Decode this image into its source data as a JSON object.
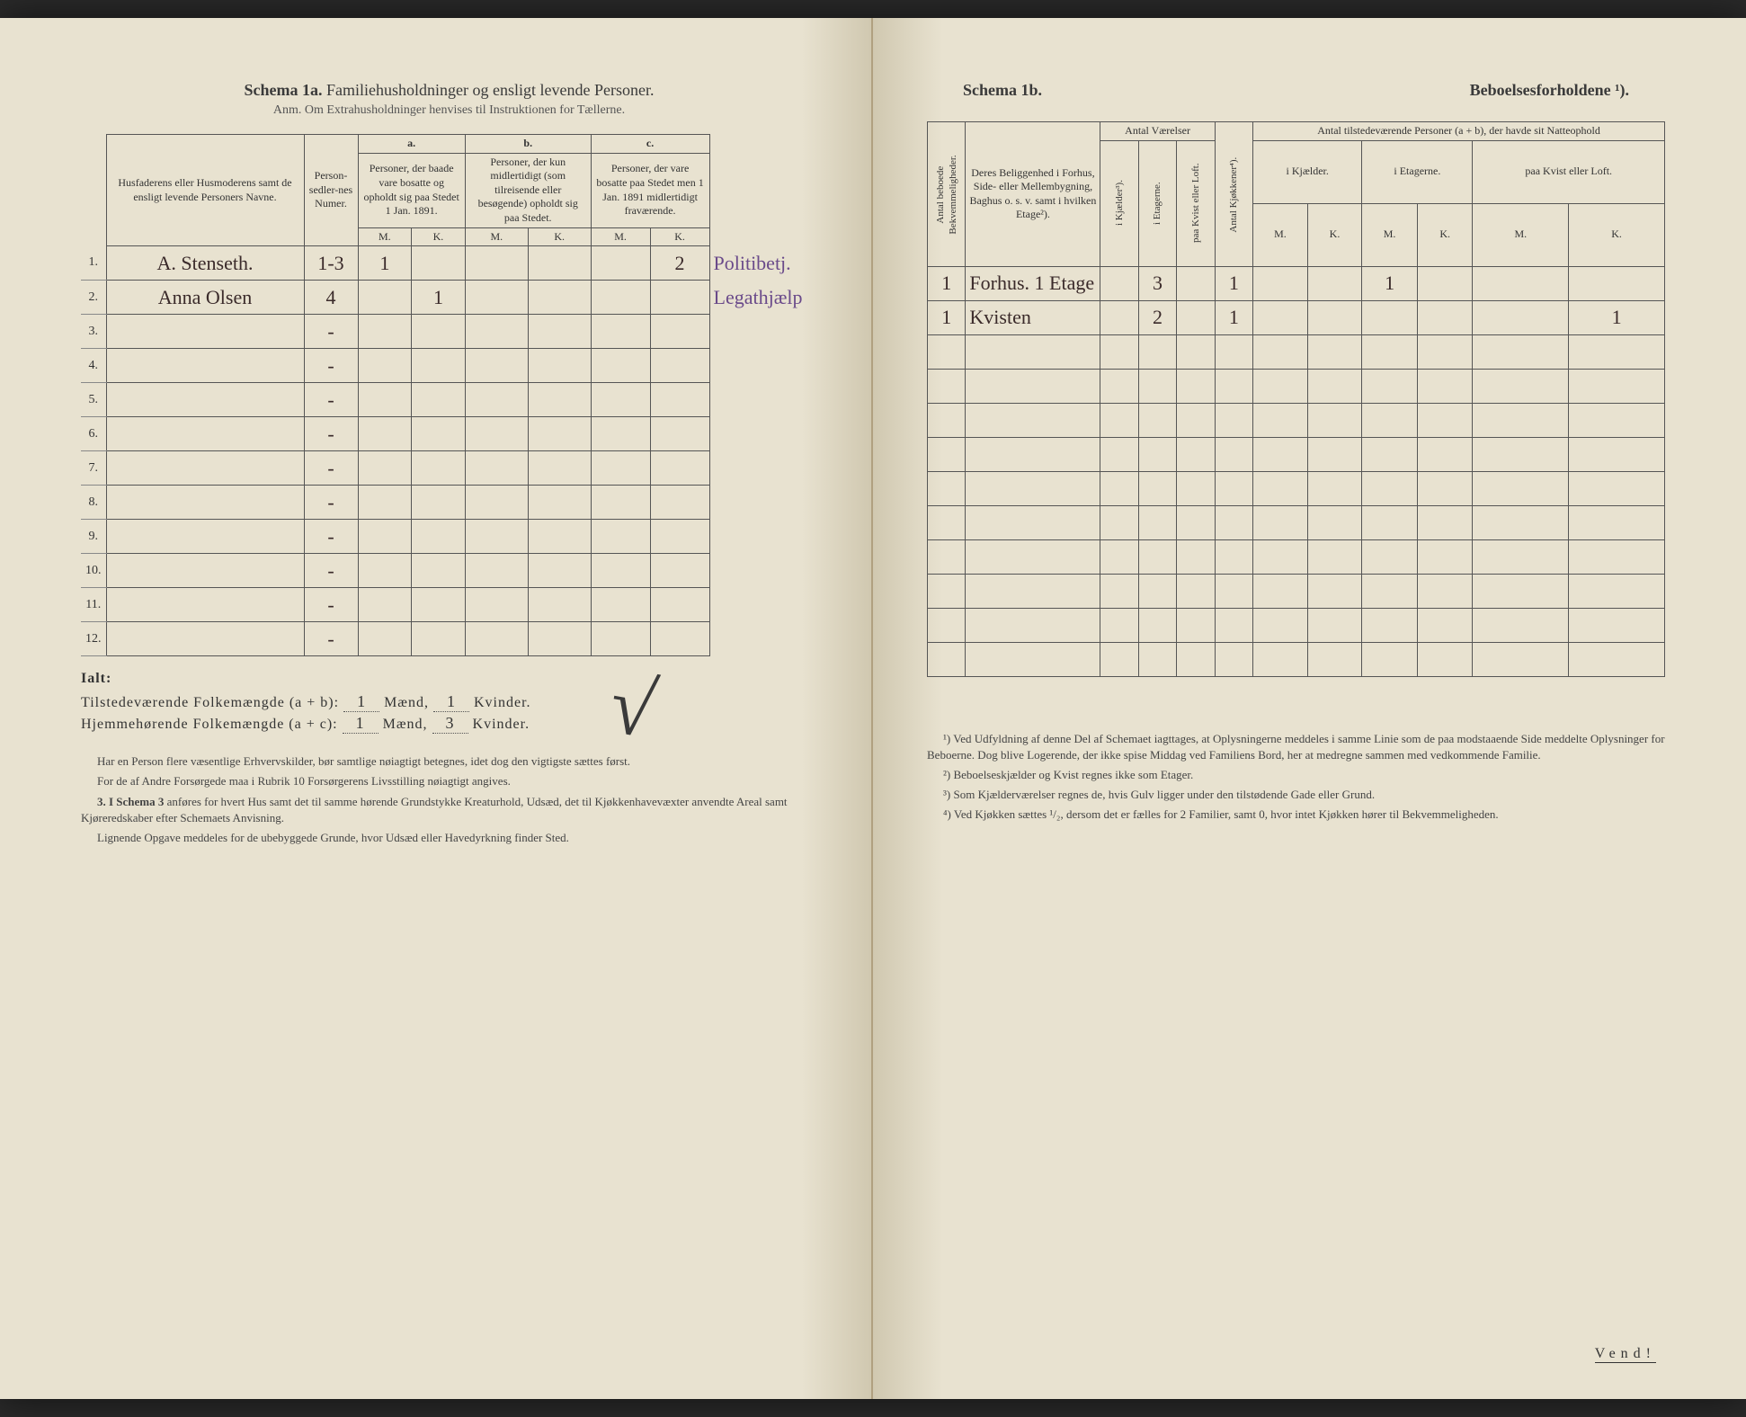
{
  "left": {
    "title_bold": "Schema 1a.",
    "title_rest": "Familiehusholdninger og ensligt levende Personer.",
    "subtitle": "Anm. Om Extrahusholdninger henvises til Instruktionen for Tællerne.",
    "col_name_header": "Husfaderens eller Husmoderens samt de ensligt levende Personers Navne.",
    "col_sedler": "Person-sedler-nes Numer.",
    "group_a": "a.",
    "group_b": "b.",
    "group_c": "c.",
    "col_a": "Personer, der baade vare bosatte og opholdt sig paa Stedet 1 Jan. 1891.",
    "col_b": "Personer, der kun midlertidigt (som tilreisende eller besøgende) opholdt sig paa Stedet.",
    "col_c": "Personer, der vare bosatte paa Stedet men 1 Jan. 1891 midlertidigt fraværende.",
    "mk_m": "M.",
    "mk_k": "K.",
    "rows": [
      {
        "n": "1.",
        "name": "A. Stenseth.",
        "sedler": "1-3",
        "a_m": "1",
        "a_k": "",
        "b_m": "",
        "b_k": "",
        "c_m": "",
        "c_k": "2",
        "occ": "Politibetj."
      },
      {
        "n": "2.",
        "name": "Anna Olsen",
        "sedler": "4",
        "a_m": "",
        "a_k": "1",
        "b_m": "",
        "b_k": "",
        "c_m": "",
        "c_k": "",
        "occ": "Legathjælp"
      },
      {
        "n": "3."
      },
      {
        "n": "4."
      },
      {
        "n": "5."
      },
      {
        "n": "6."
      },
      {
        "n": "7."
      },
      {
        "n": "8."
      },
      {
        "n": "9."
      },
      {
        "n": "10."
      },
      {
        "n": "11."
      },
      {
        "n": "12."
      }
    ],
    "ialt_label": "Ialt:",
    "tilstede_line_pre": "Tilstedeværende Folkemængde (a + b): ",
    "tilstede_m": "1",
    "tilstede_mid": " Mænd, ",
    "tilstede_k": "1",
    "tilstede_post": " Kvinder.",
    "hjemme_line_pre": "Hjemmehørende Folkemængde (a + c): ",
    "hjemme_m": "1",
    "hjemme_mid": " Mænd, ",
    "hjemme_k": "3",
    "hjemme_post": " Kvinder.",
    "foot1": "Har en Person flere væsentlige Erhvervskilder, bør samtlige nøiagtigt betegnes, idet dog den vigtigste sættes først.",
    "foot2": "For de af Andre Forsørgede maa i Rubrik 10 Forsørgerens Livsstilling nøiagtigt angives.",
    "foot3_lead": "3. I Schema 3",
    "foot3": " anføres for hvert Hus samt det til samme hørende Grundstykke Kreaturhold, Udsæd, det til Kjøkkenhavevæxter anvendte Areal samt Kjøreredskaber efter Schemaets Anvisning.",
    "foot4": "Lignende Opgave meddeles for de ubebyggede Grunde, hvor Udsæd eller Havedyrkning finder Sted."
  },
  "right": {
    "title_left": "Schema 1b.",
    "title_right": "Beboelsesforholdene ¹).",
    "col_antal_bekv": "Antal beboede Bekvemmeligheder.",
    "col_beligg": "Deres Beliggenhed i Forhus, Side- eller Mellembygning, Baghus o. s. v. samt i hvilken Etage²).",
    "grp_vaerelser": "Antal Værelser",
    "col_kjaelder": "i Kjælder³).",
    "col_etager": "i Etagerne.",
    "col_kvist": "paa Kvist eller Loft.",
    "col_kjokken": "Antal Kjøkkener⁴).",
    "grp_natte": "Antal tilstedeværende Personer (a + b), der havde sit Natteophold",
    "sub_kjaelder": "i Kjælder.",
    "sub_etager": "i Etagerne.",
    "sub_kvist": "paa Kvist eller Loft.",
    "mk_m": "M.",
    "mk_k": "K.",
    "rows": [
      {
        "bekv": "1",
        "beligg": "Forhus. 1 Etage",
        "kj": "",
        "et": "3",
        "kv": "",
        "kjok": "1",
        "n_kj_m": "",
        "n_kj_k": "",
        "n_et_m": "1",
        "n_et_k": "",
        "n_kv_m": "",
        "n_kv_k": ""
      },
      {
        "bekv": "1",
        "beligg": "Kvisten",
        "kj": "",
        "et": "2",
        "kv": "",
        "kjok": "1",
        "n_kj_m": "",
        "n_kj_k": "",
        "n_et_m": "",
        "n_et_k": "",
        "n_kv_m": "",
        "n_kv_k": "1"
      },
      {},
      {},
      {},
      {},
      {},
      {},
      {},
      {},
      {},
      {}
    ],
    "foot1": "¹) Ved Udfyldning af denne Del af Schemaet iagttages, at Oplysningerne meddeles i samme Linie som de paa modstaaende Side meddelte Oplysninger for Beboerne. Dog blive Logerende, der ikke spise Middag ved Familiens Bord, her at medregne sammen med vedkommende Familie.",
    "foot2": "²) Beboelseskjælder og Kvist regnes ikke som Etager.",
    "foot3": "³) Som Kjælderværelser regnes de, hvis Gulv ligger under den tilstødende Gade eller Grund.",
    "foot4": "⁴) Ved Kjøkken sættes ¹/₂, dersom det er fælles for 2 Familier, samt 0, hvor intet Kjøkken hører til Bekvemmeligheden.",
    "vend": "Vend!"
  }
}
